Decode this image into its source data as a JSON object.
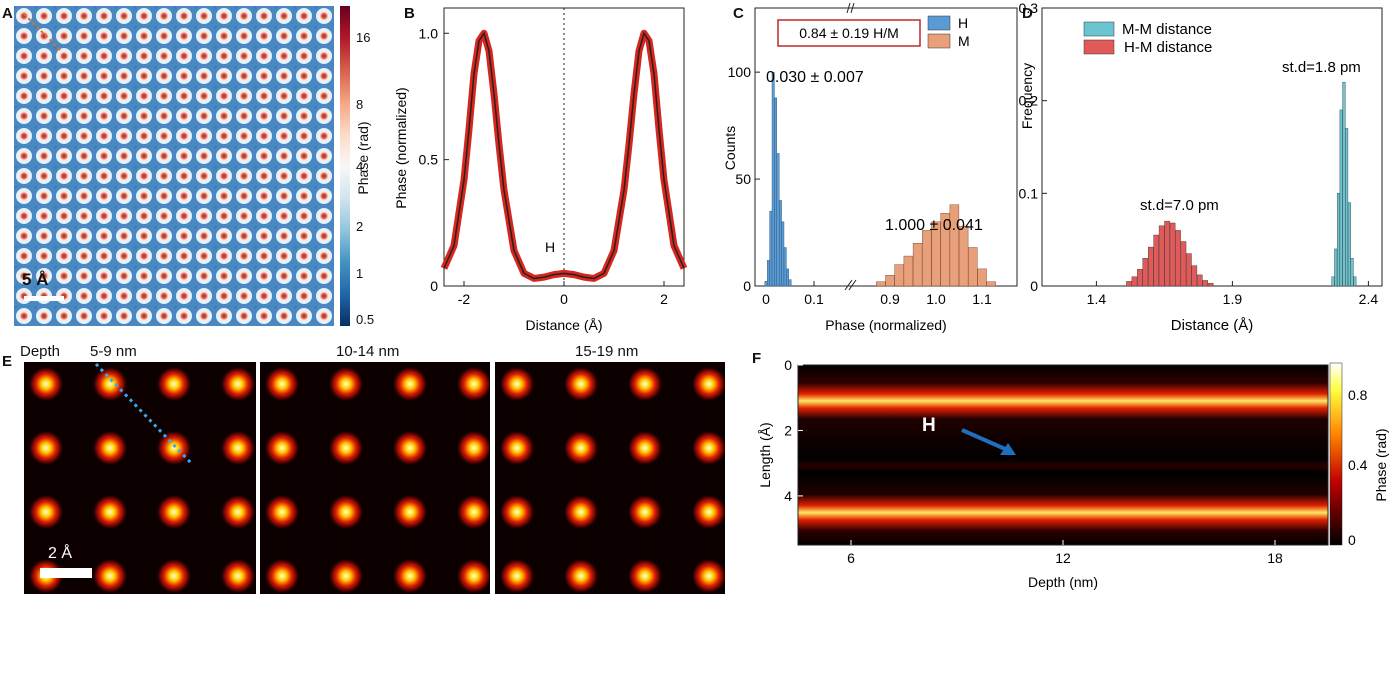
{
  "panels": {
    "A": {
      "letter": "A",
      "scale_bar": "5 Å",
      "colorbar_ticks": [
        "16",
        "8",
        "4",
        "2",
        "1",
        "0.5"
      ],
      "colorbar_label": "Phase (rad)"
    },
    "B": {
      "letter": "B",
      "xlabel": "Distance (Å)",
      "ylabel": "Phase (normalized)",
      "annotation": "H"
    },
    "C": {
      "letter": "C",
      "xlabel": "Phase (normalized)",
      "ylabel": "Counts",
      "boxed_text": "0.84 ± 0.19 H/M",
      "label_h": "0.030 ± 0.007",
      "label_m": "1.000 ± 0.041",
      "legend": [
        "H",
        "M"
      ]
    },
    "D": {
      "letter": "D",
      "xlabel": "Distance (Å)",
      "ylabel": "Frequency",
      "legend": [
        "M-M distance",
        "H-M distance"
      ],
      "label_mm": "st.d=1.8 pm",
      "label_hm": "st.d=7.0 pm"
    },
    "E": {
      "letter": "E",
      "depth_label": "Depth",
      "depths": [
        "5-9 nm",
        "10-14 nm",
        "15-19 nm"
      ],
      "scale_bar": "2 Å"
    },
    "F": {
      "letter": "F",
      "xlabel": "Depth (nm)",
      "ylabel": "Length (Å)",
      "annotation": "H",
      "colorbar_ticks": [
        "0.8",
        "0.4",
        "0"
      ],
      "colorbar_label": "Phase (rad)"
    }
  },
  "chart_data": [
    {
      "type": "line",
      "panel": "B",
      "xlim": [
        -2.4,
        2.4
      ],
      "ylim": [
        0,
        1.1
      ],
      "xticks": [
        "-2",
        "0",
        "2"
      ],
      "yticks": [
        "0",
        "0.5",
        "1.0"
      ],
      "series": [
        {
          "x": [
            -2.4,
            -2.2,
            -2.0,
            -1.9,
            -1.8,
            -1.7,
            -1.6,
            -1.5,
            -1.4,
            -1.3,
            -1.2,
            -1.0,
            -0.8,
            -0.6,
            -0.4,
            -0.2,
            0.0,
            0.2,
            0.4,
            0.6,
            0.8,
            1.0,
            1.2,
            1.3,
            1.4,
            1.5,
            1.6,
            1.7,
            1.8,
            1.9,
            2.0,
            2.2,
            2.4
          ],
          "y": [
            0.07,
            0.16,
            0.42,
            0.62,
            0.84,
            0.97,
            1.0,
            0.93,
            0.76,
            0.56,
            0.38,
            0.14,
            0.05,
            0.03,
            0.035,
            0.045,
            0.05,
            0.045,
            0.035,
            0.03,
            0.05,
            0.14,
            0.38,
            0.56,
            0.76,
            0.93,
            1.0,
            0.97,
            0.84,
            0.62,
            0.42,
            0.16,
            0.07
          ]
        }
      ]
    },
    {
      "type": "bar",
      "panel": "C",
      "yticks": [
        "0",
        "50",
        "100"
      ],
      "ylim": [
        0,
        130
      ],
      "xticks": [
        "0",
        "0.1",
        "0.9",
        "1.0",
        "1.1"
      ],
      "series": [
        {
          "name": "H",
          "color": "#5b9bd5",
          "x": [
            0.0,
            0.005,
            0.01,
            0.015,
            0.02,
            0.025,
            0.03,
            0.035,
            0.04,
            0.045,
            0.05
          ],
          "values": [
            2,
            12,
            35,
            100,
            88,
            62,
            40,
            30,
            18,
            8,
            3
          ]
        },
        {
          "name": "M",
          "color": "#e8a07a",
          "x": [
            0.88,
            0.9,
            0.92,
            0.94,
            0.96,
            0.98,
            1.0,
            1.02,
            1.04,
            1.06,
            1.08,
            1.1,
            1.12
          ],
          "values": [
            2,
            5,
            10,
            14,
            20,
            26,
            30,
            34,
            38,
            28,
            18,
            8,
            2
          ]
        }
      ]
    },
    {
      "type": "bar",
      "panel": "D",
      "xlim": [
        1.2,
        2.45
      ],
      "ylim": [
        0,
        0.3
      ],
      "xticks": [
        "1.4",
        "1.9",
        "2.4"
      ],
      "yticks": [
        "0",
        "0.1",
        "0.2",
        "0.3"
      ],
      "series": [
        {
          "name": "H-M distance",
          "color": "#e05a5a",
          "x": [
            1.52,
            1.54,
            1.56,
            1.58,
            1.6,
            1.62,
            1.64,
            1.66,
            1.68,
            1.7,
            1.72,
            1.74,
            1.76,
            1.78,
            1.8,
            1.82
          ],
          "values": [
            0.005,
            0.01,
            0.018,
            0.03,
            0.042,
            0.055,
            0.065,
            0.07,
            0.068,
            0.06,
            0.048,
            0.035,
            0.022,
            0.012,
            0.006,
            0.003
          ]
        },
        {
          "name": "M-M distance",
          "color": "#6cc4d0",
          "x": [
            2.27,
            2.28,
            2.29,
            2.3,
            2.31,
            2.32,
            2.33,
            2.34,
            2.35
          ],
          "values": [
            0.01,
            0.04,
            0.1,
            0.19,
            0.22,
            0.17,
            0.09,
            0.03,
            0.01
          ]
        }
      ]
    },
    {
      "type": "heatmap",
      "panel": "F",
      "xlim": [
        4.5,
        19.5
      ],
      "ylim": [
        0,
        5.5
      ],
      "xticks": [
        "6",
        "12",
        "18"
      ],
      "yticks": [
        "0",
        "2",
        "4"
      ],
      "band_centers": [
        1.0,
        3.1,
        4.5
      ]
    }
  ]
}
